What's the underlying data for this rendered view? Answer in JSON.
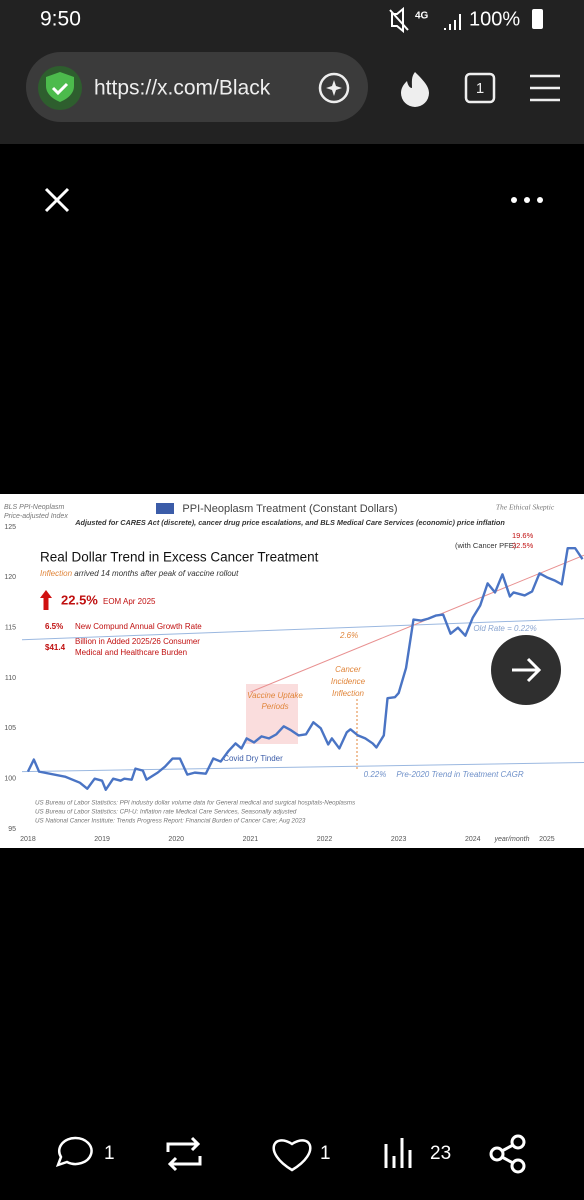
{
  "status_bar": {
    "time": "9:50",
    "battery": "100%"
  },
  "browser": {
    "url": "https://x.com/Black",
    "tab_count": "1"
  },
  "chart_data": {
    "type": "line",
    "title": "PPI-Neoplasm Treatment (Constant Dollars)",
    "subtitle": "Adjusted for CARES Act (discrete),  cancer drug price escalations, and BLS Medical Care Services (economic)  price  inflation",
    "ylabel": [
      "BLS PPI-Neoplasm",
      "Price-adjusted  Index"
    ],
    "watermark": "The Ethical Skeptic",
    "xlabel": "year/month",
    "xlim": [
      2017.92,
      2025.5
    ],
    "xticks": [
      2018,
      2019,
      2020,
      2021,
      2022,
      2023,
      2024,
      2025
    ],
    "ylim": [
      95,
      125
    ],
    "yticks": [
      95,
      100,
      105,
      110,
      115,
      120,
      125
    ],
    "series": [
      {
        "color": "#4a74c4",
        "x": [
          2018.0,
          2018.08,
          2018.15,
          2018.5,
          2018.7,
          2018.8,
          2018.9,
          2019.0,
          2019.05,
          2019.15,
          2019.25,
          2019.3,
          2019.4,
          2019.45,
          2019.55,
          2019.6,
          2019.75,
          2019.85,
          2019.95,
          2020.05,
          2020.15,
          2020.25,
          2020.4,
          2020.5,
          2020.6,
          2020.7,
          2020.8,
          2020.88,
          2020.95,
          2021.05,
          2021.15,
          2021.25,
          2021.35,
          2021.45,
          2021.55,
          2021.65,
          2021.75,
          2021.85,
          2021.95,
          2022.05,
          2022.1,
          2022.2,
          2022.3,
          2022.35,
          2022.45,
          2022.55,
          2022.65,
          2022.7,
          2022.8,
          2022.85,
          2022.95,
          2023.0,
          2023.1,
          2023.2,
          2023.3,
          2023.4,
          2023.5,
          2023.6,
          2023.7,
          2023.8,
          2023.9,
          2024.0,
          2024.1,
          2024.2,
          2024.3,
          2024.4,
          2024.5,
          2024.55,
          2024.7,
          2024.8,
          2024.9,
          2025.0,
          2025.1,
          2025.2,
          2025.28,
          2025.38,
          2025.48
        ],
        "values": [
          100.7,
          101.9,
          100.7,
          100.2,
          99.6,
          99.0,
          100.0,
          99.8,
          98.9,
          100.0,
          99.8,
          100.0,
          99.9,
          101.0,
          100.8,
          99.9,
          100.6,
          101.2,
          102.0,
          102.0,
          100.4,
          100.6,
          100.5,
          102.0,
          101.7,
          102.7,
          103.5,
          103.0,
          104.0,
          103.6,
          104.2,
          104.0,
          104.4,
          105.2,
          104.8,
          104.3,
          104.4,
          105.6,
          105.0,
          103.4,
          104.0,
          103.0,
          104.6,
          104.9,
          104.3,
          104.0,
          103.5,
          103.1,
          104.3,
          108.0,
          108.1,
          108.5,
          111.0,
          115.8,
          115.7,
          115.9,
          116.2,
          116.3,
          114.4,
          115.0,
          114.2,
          116.0,
          117.2,
          119.4,
          118.5,
          120.3,
          118.1,
          118.5,
          118.2,
          118.6,
          120.4,
          120.0,
          119.7,
          119.3,
          122.9,
          122.9,
          121.8
        ]
      },
      {
        "color": "#9bb8e0",
        "x": [
          2017.92,
          2025.5
        ],
        "values": [
          100.7,
          101.6
        ]
      },
      {
        "color": "#9bb8e0",
        "x": [
          2017.92,
          2025.5
        ],
        "values": [
          113.8,
          115.9
        ]
      },
      {
        "color": "#e89090",
        "x": [
          2021.0,
          2025.5
        ],
        "values": [
          108.6,
          122.2
        ]
      }
    ],
    "annotations": {
      "heading": "Real Dollar Trend in Excess Cancer Treatment",
      "inflection": [
        "Inflection",
        " arrived 14 months after peak of vaccine rollout"
      ],
      "headline_rate": "22.5%",
      "headline_note": "EOM Apr 2025",
      "cagr": "6.5%",
      "cagr_note": "New Compund Annual Growth Rate",
      "burden": "$41.4",
      "burden_note": [
        "Billion in Added 2025/26 Consumer",
        "Medical and Healthcare Burden"
      ],
      "red_rate": "2.6%",
      "cancer_inflection": [
        "Cancer",
        "Incidence",
        "Inflection"
      ],
      "vaccine": [
        "Vaccine Uptake",
        "Periods"
      ],
      "covid": "Covid Dry Tinder",
      "pre2020_rate": "0.22%",
      "pre2020_note": "Pre-2020 Trend in Treatment CAGR",
      "old_rate": "Old Rate = 0.22%",
      "pfe": [
        "19.6%",
        "(with Cancer PFE)",
        "22.5%"
      ],
      "sources": [
        "US Bureau of Labor Statistics: PPI industry dollar volume data for General medical and surgical hospitals-Neoplasms",
        "US Bureau of Labor Statistics: CPI-U: Inflation rate Medical Care Services, Seasonally adjusted",
        "US National Cancer Institute: Trends Progress Report: Financial Burden of Cancer Care; Aug 2023"
      ]
    }
  },
  "actions": {
    "replies": "1",
    "likes": "1",
    "views": "23"
  }
}
